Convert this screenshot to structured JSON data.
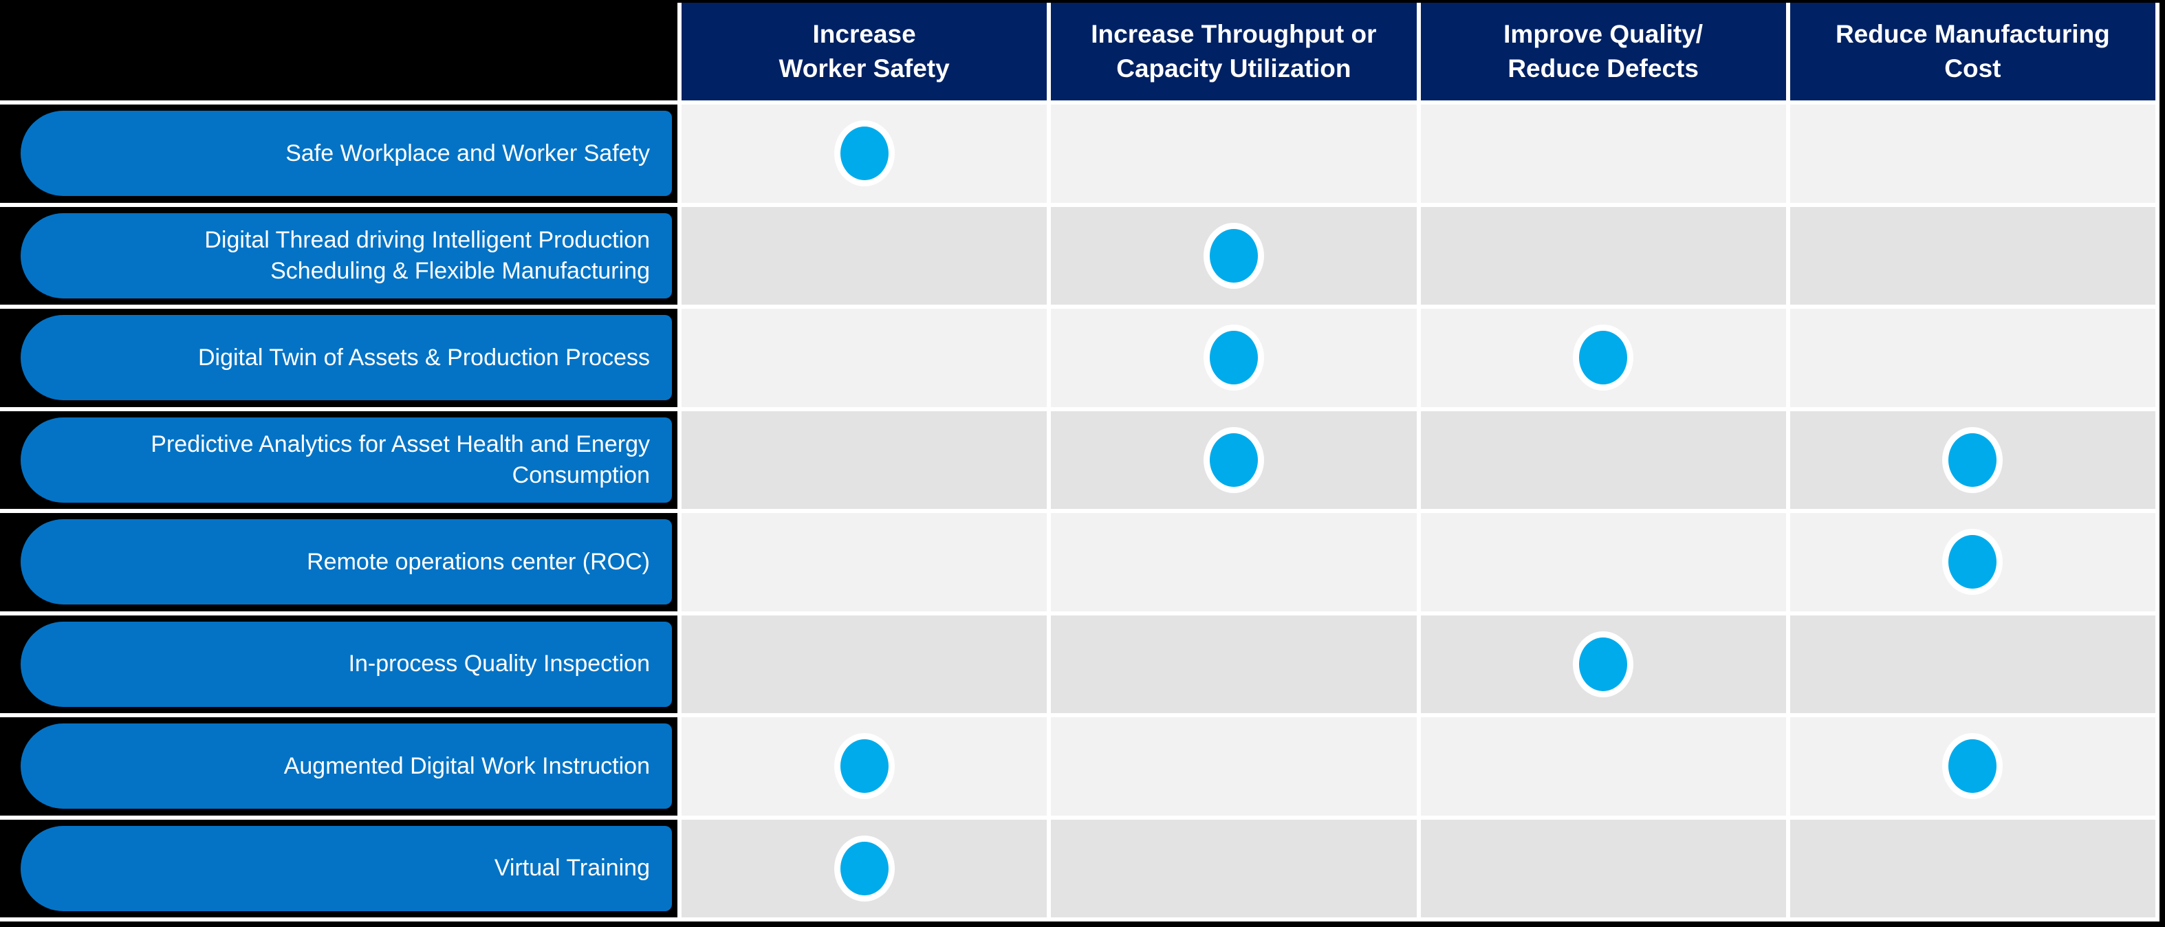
{
  "palette": {
    "header_navy": "#002163",
    "pill_blue": "#0473C5",
    "dot_cyan": "#00ABEB",
    "row_light": "#F2F2F2",
    "row_dark": "#E3E3E3",
    "background_black": "#000000",
    "separator_white": "#FFFFFF"
  },
  "columns": [
    {
      "label": "Increase\nWorker Safety"
    },
    {
      "label": "Increase Throughput or\nCapacity Utilization"
    },
    {
      "label": "Improve Quality/\nReduce Defects"
    },
    {
      "label": "Reduce Manufacturing\nCost"
    }
  ],
  "rows": [
    {
      "label": "Safe Workplace and Worker Safety",
      "benefits": [
        true,
        false,
        false,
        false
      ]
    },
    {
      "label": "Digital Thread driving Intelligent Production Scheduling & Flexible Manufacturing",
      "benefits": [
        false,
        true,
        false,
        false
      ]
    },
    {
      "label": "Digital Twin of Assets & Production Process",
      "benefits": [
        false,
        true,
        true,
        false
      ]
    },
    {
      "label": "Predictive Analytics for Asset Health and Energy Consumption",
      "benefits": [
        false,
        true,
        false,
        true
      ]
    },
    {
      "label": "Remote operations center (ROC)",
      "benefits": [
        false,
        false,
        false,
        true
      ]
    },
    {
      "label": "In-process Quality Inspection",
      "benefits": [
        false,
        false,
        true,
        false
      ]
    },
    {
      "label": "Augmented Digital Work Instruction",
      "benefits": [
        true,
        false,
        false,
        true
      ]
    },
    {
      "label": "Virtual Training",
      "benefits": [
        true,
        false,
        false,
        false
      ]
    }
  ]
}
